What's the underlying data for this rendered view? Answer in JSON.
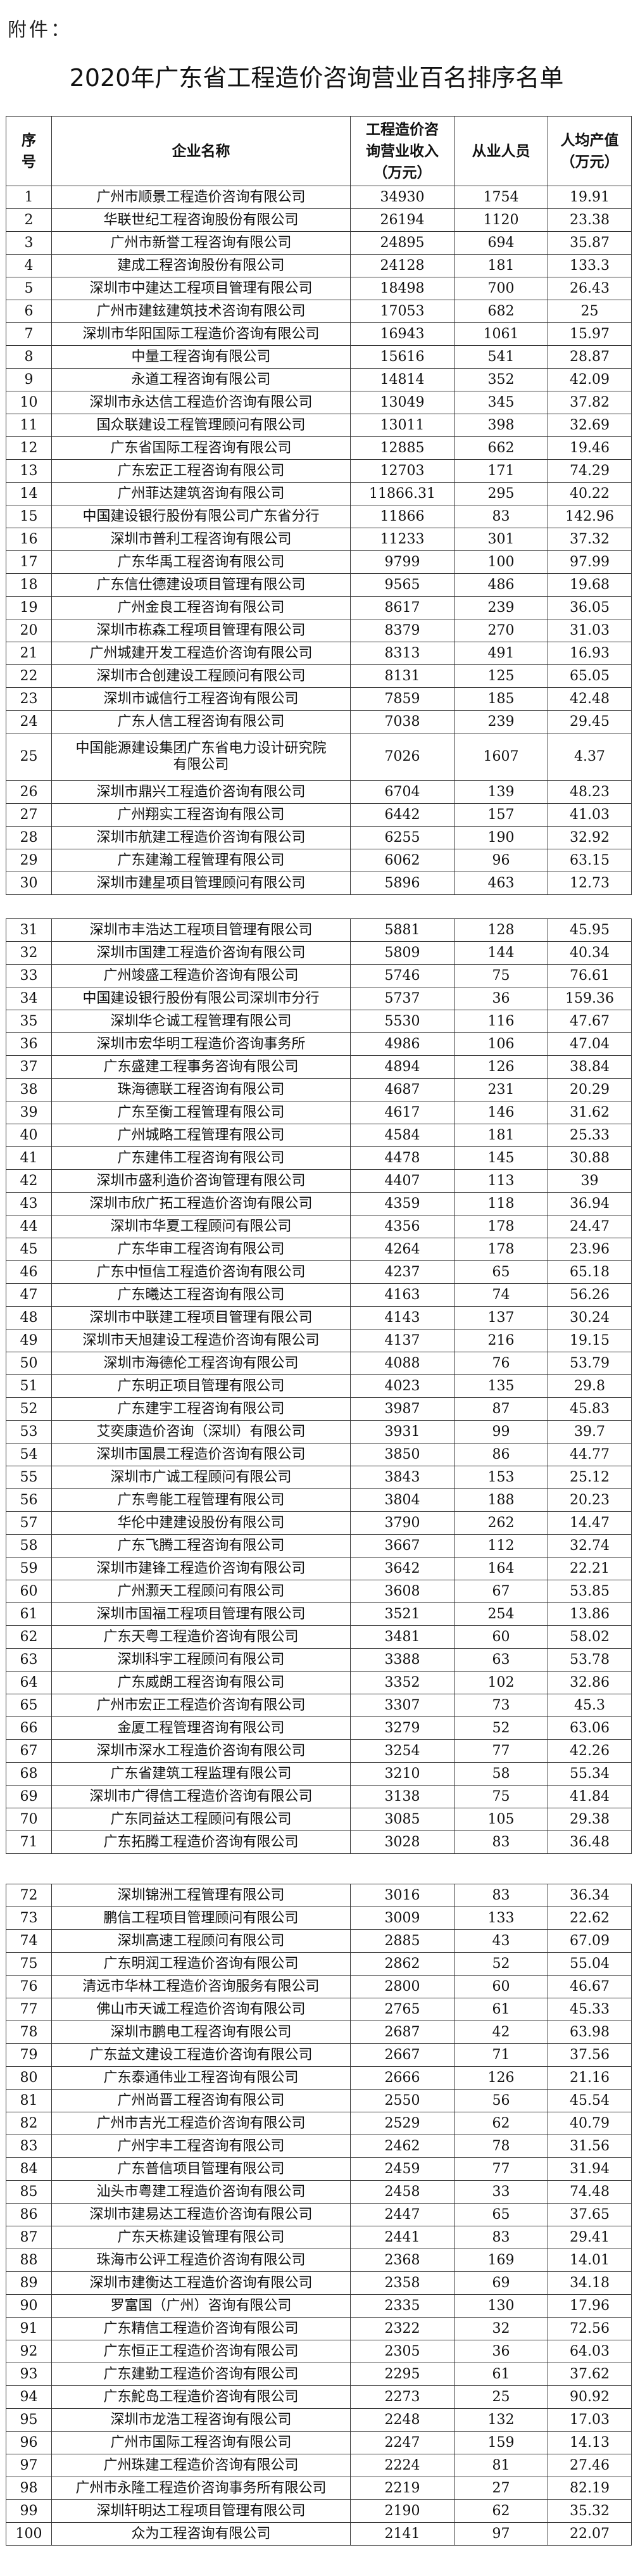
{
  "attachment_label": "附件：",
  "title": "2020年广东省工程造价咨询营业百名排序名单",
  "header": {
    "no": "序号",
    "name": "企业名称",
    "revenue": "工程造价咨询营业收入（万元）",
    "staff": "从业人员",
    "per_capita": "人均产值（万元）"
  },
  "rows": [
    [
      "1",
      "广州市顺景工程造价咨询有限公司",
      "34930",
      "1754",
      "19.91"
    ],
    [
      "2",
      "华联世纪工程咨询股份有限公司",
      "26194",
      "1120",
      "23.38"
    ],
    [
      "3",
      "广州市新誉工程咨询有限公司",
      "24895",
      "694",
      "35.87"
    ],
    [
      "4",
      "建成工程咨询股份有限公司",
      "24128",
      "181",
      "133.3"
    ],
    [
      "5",
      "深圳市中建达工程项目管理有限公司",
      "18498",
      "700",
      "26.43"
    ],
    [
      "6",
      "广州市建鉉建筑技术咨询有限公司",
      "17053",
      "682",
      "25"
    ],
    [
      "7",
      "深圳市华阳国际工程造价咨询有限公司",
      "16943",
      "1061",
      "15.97"
    ],
    [
      "8",
      "中量工程咨询有限公司",
      "15616",
      "541",
      "28.87"
    ],
    [
      "9",
      "永道工程咨询有限公司",
      "14814",
      "352",
      "42.09"
    ],
    [
      "10",
      "深圳市永达信工程造价咨询有限公司",
      "13049",
      "345",
      "37.82"
    ],
    [
      "11",
      "国众联建设工程管理顾问有限公司",
      "13011",
      "398",
      "32.69"
    ],
    [
      "12",
      "广东省国际工程咨询有限公司",
      "12885",
      "662",
      "19.46"
    ],
    [
      "13",
      "广东宏正工程咨询有限公司",
      "12703",
      "171",
      "74.29"
    ],
    [
      "14",
      "广州菲达建筑咨询有限公司",
      "11866.31",
      "295",
      "40.22"
    ],
    [
      "15",
      "中国建设银行股份有限公司广东省分行",
      "11866",
      "83",
      "142.96"
    ],
    [
      "16",
      "深圳市普利工程咨询有限公司",
      "11233",
      "301",
      "37.32"
    ],
    [
      "17",
      "广东华禹工程咨询有限公司",
      "9799",
      "100",
      "97.99"
    ],
    [
      "18",
      "广东信仕德建设项目管理有限公司",
      "9565",
      "486",
      "19.68"
    ],
    [
      "19",
      "广州金良工程咨询有限公司",
      "8617",
      "239",
      "36.05"
    ],
    [
      "20",
      "深圳市栋森工程项目管理有限公司",
      "8379",
      "270",
      "31.03"
    ],
    [
      "21",
      "广州城建开发工程造价咨询有限公司",
      "8313",
      "491",
      "16.93"
    ],
    [
      "22",
      "深圳市合创建设工程顾问有限公司",
      "8131",
      "125",
      "65.05"
    ],
    [
      "23",
      "深圳市诚信行工程咨询有限公司",
      "7859",
      "185",
      "42.48"
    ],
    [
      "24",
      "广东人信工程咨询有限公司",
      "7038",
      "239",
      "29.45"
    ],
    [
      "25",
      "中国能源建设集团广东省电力设计研究院有限公司",
      "7026",
      "1607",
      "4.37"
    ],
    [
      "26",
      "深圳市鼎兴工程造价咨询有限公司",
      "6704",
      "139",
      "48.23"
    ],
    [
      "27",
      "广州翔实工程咨询有限公司",
      "6442",
      "157",
      "41.03"
    ],
    [
      "28",
      "深圳市航建工程造价咨询有限公司",
      "6255",
      "190",
      "32.92"
    ],
    [
      "29",
      "广东建瀚工程管理有限公司",
      "6062",
      "96",
      "63.15"
    ],
    [
      "30",
      "深圳市建星项目管理顾问有限公司",
      "5896",
      "463",
      "12.73"
    ],
    [
      "31",
      "深圳市丰浩达工程项目管理有限公司",
      "5881",
      "128",
      "45.95"
    ],
    [
      "32",
      "深圳市国建工程造价咨询有限公司",
      "5809",
      "144",
      "40.34"
    ],
    [
      "33",
      "广州竣盛工程造价咨询有限公司",
      "5746",
      "75",
      "76.61"
    ],
    [
      "34",
      "中国建设银行股份有限公司深圳市分行",
      "5737",
      "36",
      "159.36"
    ],
    [
      "35",
      "深圳华仑诚工程管理有限公司",
      "5530",
      "116",
      "47.67"
    ],
    [
      "36",
      "深圳市宏华明工程造价咨询事务所",
      "4986",
      "106",
      "47.04"
    ],
    [
      "37",
      "广东盛建工程事务咨询有限公司",
      "4894",
      "126",
      "38.84"
    ],
    [
      "38",
      "珠海德联工程咨询有限公司",
      "4687",
      "231",
      "20.29"
    ],
    [
      "39",
      "广东至衡工程管理有限公司",
      "4617",
      "146",
      "31.62"
    ],
    [
      "40",
      "广州城略工程管理有限公司",
      "4584",
      "181",
      "25.33"
    ],
    [
      "41",
      "广东建伟工程咨询有限公司",
      "4478",
      "145",
      "30.88"
    ],
    [
      "42",
      "深圳市盛利造价咨询管理有限公司",
      "4407",
      "113",
      "39"
    ],
    [
      "43",
      "深圳市欣广拓工程造价咨询有限公司",
      "4359",
      "118",
      "36.94"
    ],
    [
      "44",
      "深圳市华夏工程顾问有限公司",
      "4356",
      "178",
      "24.47"
    ],
    [
      "45",
      "广东华审工程咨询有限公司",
      "4264",
      "178",
      "23.96"
    ],
    [
      "46",
      "广东中恒信工程造价咨询有限公司",
      "4237",
      "65",
      "65.18"
    ],
    [
      "47",
      "广东曦达工程咨询有限公司",
      "4163",
      "74",
      "56.26"
    ],
    [
      "48",
      "深圳市中联建工程项目管理有限公司",
      "4143",
      "137",
      "30.24"
    ],
    [
      "49",
      "深圳市天旭建设工程造价咨询有限公司",
      "4137",
      "216",
      "19.15"
    ],
    [
      "50",
      "深圳市海德伦工程咨询有限公司",
      "4088",
      "76",
      "53.79"
    ],
    [
      "51",
      "广东明正项目管理有限公司",
      "4023",
      "135",
      "29.8"
    ],
    [
      "52",
      "广东建宇工程咨询有限公司",
      "3987",
      "87",
      "45.83"
    ],
    [
      "53",
      "艾奕康造价咨询（深圳）有限公司",
      "3931",
      "99",
      "39.7"
    ],
    [
      "54",
      "深圳市国晨工程造价咨询有限公司",
      "3850",
      "86",
      "44.77"
    ],
    [
      "55",
      "深圳市广诚工程顾问有限公司",
      "3843",
      "153",
      "25.12"
    ],
    [
      "56",
      "广东粤能工程管理有限公司",
      "3804",
      "188",
      "20.23"
    ],
    [
      "57",
      "华伦中建建设股份有限公司",
      "3790",
      "262",
      "14.47"
    ],
    [
      "58",
      "广东飞腾工程咨询有限公司",
      "3667",
      "112",
      "32.74"
    ],
    [
      "59",
      "深圳市建锋工程造价咨询有限公司",
      "3642",
      "164",
      "22.21"
    ],
    [
      "60",
      "广州灏天工程顾问有限公司",
      "3608",
      "67",
      "53.85"
    ],
    [
      "61",
      "深圳市国福工程项目管理有限公司",
      "3521",
      "254",
      "13.86"
    ],
    [
      "62",
      "广东天粤工程造价咨询有限公司",
      "3481",
      "60",
      "58.02"
    ],
    [
      "63",
      "深圳科宇工程顾问有限公司",
      "3388",
      "63",
      "53.78"
    ],
    [
      "64",
      "广东威朗工程咨询有限公司",
      "3352",
      "102",
      "32.86"
    ],
    [
      "65",
      "广州市宏正工程造价咨询有限公司",
      "3307",
      "73",
      "45.3"
    ],
    [
      "66",
      "金厦工程管理咨询有限公司",
      "3279",
      "52",
      "63.06"
    ],
    [
      "67",
      "深圳市深水工程造价咨询有限公司",
      "3254",
      "77",
      "42.26"
    ],
    [
      "68",
      "广东省建筑工程监理有限公司",
      "3210",
      "58",
      "55.34"
    ],
    [
      "69",
      "深圳市广得信工程造价咨询有限公司",
      "3138",
      "75",
      "41.84"
    ],
    [
      "70",
      "广东同益达工程顾问有限公司",
      "3085",
      "105",
      "29.38"
    ],
    [
      "71",
      "广东拓腾工程造价咨询有限公司",
      "3028",
      "83",
      "36.48"
    ],
    [
      "72",
      "深圳锦洲工程管理有限公司",
      "3016",
      "83",
      "36.34"
    ],
    [
      "73",
      "鹏信工程项目管理顾问有限公司",
      "3009",
      "133",
      "22.62"
    ],
    [
      "74",
      "深圳高速工程顾问有限公司",
      "2885",
      "43",
      "67.09"
    ],
    [
      "75",
      "广东明润工程造价咨询有限公司",
      "2862",
      "52",
      "55.04"
    ],
    [
      "76",
      "清远市华林工程造价咨询服务有限公司",
      "2800",
      "60",
      "46.67"
    ],
    [
      "77",
      "佛山市天诚工程造价咨询有限公司",
      "2765",
      "61",
      "45.33"
    ],
    [
      "78",
      "深圳市鹏电工程咨询有限公司",
      "2687",
      "42",
      "63.98"
    ],
    [
      "79",
      "广东益文建设工程造价咨询有限公司",
      "2667",
      "71",
      "37.56"
    ],
    [
      "80",
      "广东泰通伟业工程咨询有限公司",
      "2666",
      "126",
      "21.16"
    ],
    [
      "81",
      "广州尚晋工程咨询有限公司",
      "2550",
      "56",
      "45.54"
    ],
    [
      "82",
      "广州市吉光工程造价咨询有限公司",
      "2529",
      "62",
      "40.79"
    ],
    [
      "83",
      "广州宇丰工程咨询有限公司",
      "2462",
      "78",
      "31.56"
    ],
    [
      "84",
      "广东普信项目管理有限公司",
      "2459",
      "77",
      "31.94"
    ],
    [
      "85",
      "汕头市粤建工程造价咨询有限公司",
      "2458",
      "33",
      "74.48"
    ],
    [
      "86",
      "深圳市建易达工程造价咨询有限公司",
      "2447",
      "65",
      "37.65"
    ],
    [
      "87",
      "广东天栋建设管理有限公司",
      "2441",
      "83",
      "29.41"
    ],
    [
      "88",
      "珠海市公评工程造价咨询有限公司",
      "2368",
      "169",
      "14.01"
    ],
    [
      "89",
      "深圳市建衡达工程造价咨询有限公司",
      "2358",
      "69",
      "34.18"
    ],
    [
      "90",
      "罗富国（广州）咨询有限公司",
      "2335",
      "130",
      "17.96"
    ],
    [
      "91",
      "广东精信工程造价咨询有限公司",
      "2322",
      "32",
      "72.56"
    ],
    [
      "92",
      "广东恒正工程造价咨询有限公司",
      "2305",
      "36",
      "64.03"
    ],
    [
      "93",
      "广东建勤工程造价咨询有限公司",
      "2295",
      "61",
      "37.62"
    ],
    [
      "94",
      "广东鮀岛工程造价咨询有限公司",
      "2273",
      "25",
      "90.92"
    ],
    [
      "95",
      "深圳市龙浩工程咨询有限公司",
      "2248",
      "132",
      "17.03"
    ],
    [
      "96",
      "广州市国际工程咨询有限公司",
      "2247",
      "159",
      "14.13"
    ],
    [
      "97",
      "广州珠建工程造价咨询有限公司",
      "2224",
      "81",
      "27.46"
    ],
    [
      "98",
      "广州市永隆工程造价咨询事务所有限公司",
      "2219",
      "27",
      "82.19"
    ],
    [
      "99",
      "深圳轩明达工程项目管理有限公司",
      "2190",
      "62",
      "35.32"
    ],
    [
      "100",
      "众为工程咨询有限公司",
      "2141",
      "97",
      "22.07"
    ]
  ]
}
